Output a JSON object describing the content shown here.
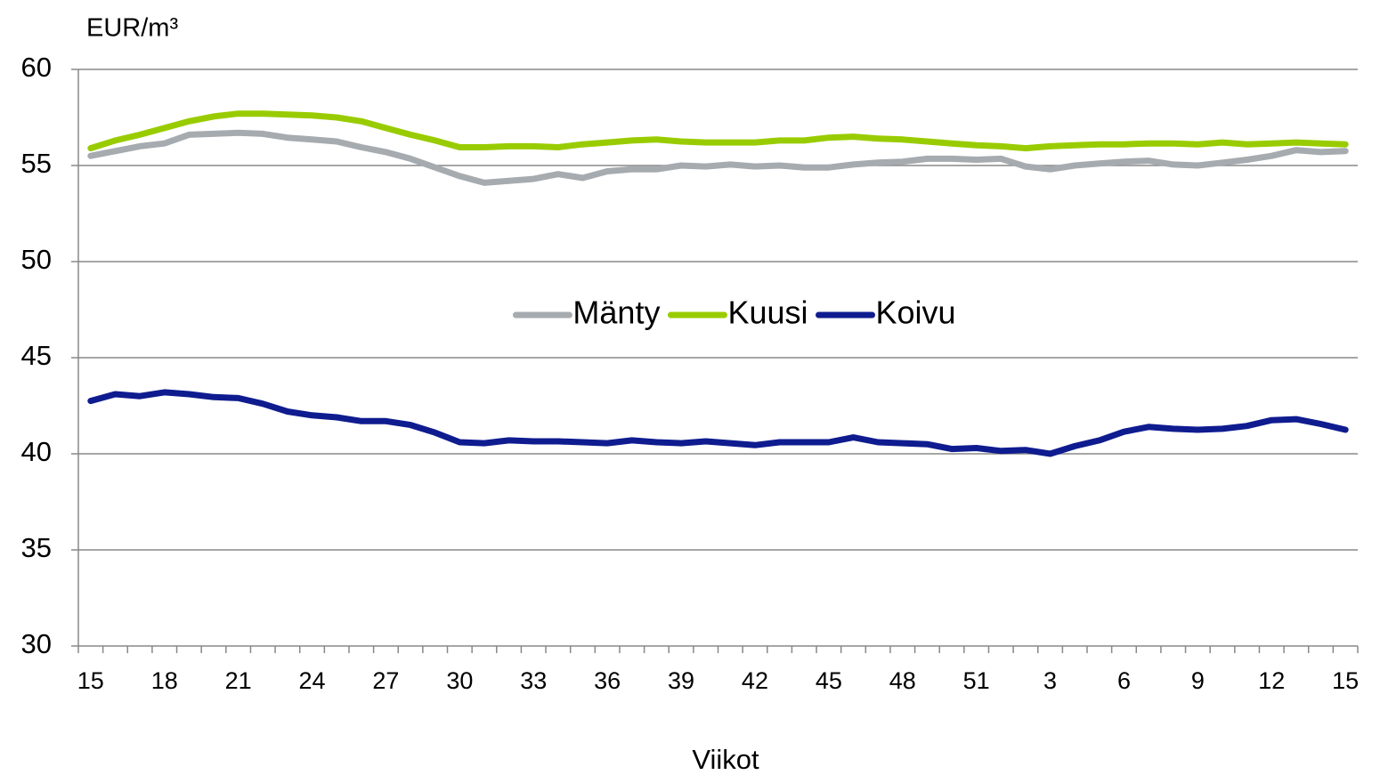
{
  "chart_data": {
    "type": "line",
    "y_label": "EUR/m³",
    "x_label": "Viikot",
    "categories": [
      15,
      null,
      null,
      18,
      null,
      null,
      21,
      null,
      null,
      24,
      null,
      null,
      27,
      null,
      null,
      30,
      null,
      null,
      33,
      null,
      null,
      36,
      null,
      null,
      39,
      null,
      null,
      42,
      null,
      null,
      45,
      null,
      null,
      48,
      null,
      null,
      51,
      null,
      null,
      3,
      null,
      null,
      6,
      null,
      null,
      9,
      null,
      null,
      12,
      null,
      null,
      15
    ],
    "series": [
      {
        "name": "Mänty",
        "color": "#a6abb0",
        "values": [
          55.5,
          55.75,
          56.0,
          56.15,
          56.6,
          56.65,
          56.7,
          56.65,
          56.45,
          56.35,
          56.25,
          55.95,
          55.7,
          55.35,
          54.9,
          54.45,
          54.1,
          54.2,
          54.3,
          54.55,
          54.35,
          54.7,
          54.8,
          54.8,
          55.0,
          54.95,
          55.05,
          54.95,
          55.0,
          54.9,
          54.9,
          55.05,
          55.15,
          55.2,
          55.35,
          55.35,
          55.3,
          55.35,
          54.95,
          54.8,
          55.0,
          55.1,
          55.2,
          55.25,
          55.05,
          55.0,
          55.15,
          55.3,
          55.5,
          55.8,
          55.7,
          55.75
        ]
      },
      {
        "name": "Kuusi",
        "color": "#99cc00",
        "values": [
          55.9,
          56.3,
          56.6,
          56.95,
          57.3,
          57.55,
          57.7,
          57.7,
          57.65,
          57.6,
          57.5,
          57.3,
          56.95,
          56.6,
          56.3,
          55.95,
          55.95,
          56.0,
          56.0,
          55.95,
          56.1,
          56.2,
          56.3,
          56.35,
          56.25,
          56.2,
          56.2,
          56.2,
          56.3,
          56.3,
          56.45,
          56.5,
          56.4,
          56.35,
          56.25,
          56.15,
          56.05,
          56.0,
          55.9,
          56.0,
          56.05,
          56.1,
          56.1,
          56.15,
          56.15,
          56.1,
          56.2,
          56.1,
          56.15,
          56.2,
          56.15,
          56.1
        ]
      },
      {
        "name": "Koivu",
        "color": "#0f1c8f",
        "values": [
          42.75,
          43.1,
          43.0,
          43.2,
          43.1,
          42.95,
          42.9,
          42.6,
          42.2,
          42.0,
          41.9,
          41.7,
          41.7,
          41.5,
          41.1,
          40.6,
          40.55,
          40.7,
          40.65,
          40.65,
          40.6,
          40.55,
          40.7,
          40.6,
          40.55,
          40.65,
          40.55,
          40.45,
          40.6,
          40.6,
          40.6,
          40.85,
          40.6,
          40.55,
          40.5,
          40.25,
          40.3,
          40.15,
          40.2,
          40.0,
          40.4,
          40.7,
          41.15,
          41.4,
          41.3,
          41.25,
          41.3,
          41.45,
          41.75,
          41.8,
          41.55,
          41.25
        ]
      }
    ],
    "ylim": [
      30,
      60
    ],
    "yticks": [
      30,
      35,
      40,
      45,
      50,
      55,
      60
    ],
    "grid": true,
    "legend": "center"
  }
}
